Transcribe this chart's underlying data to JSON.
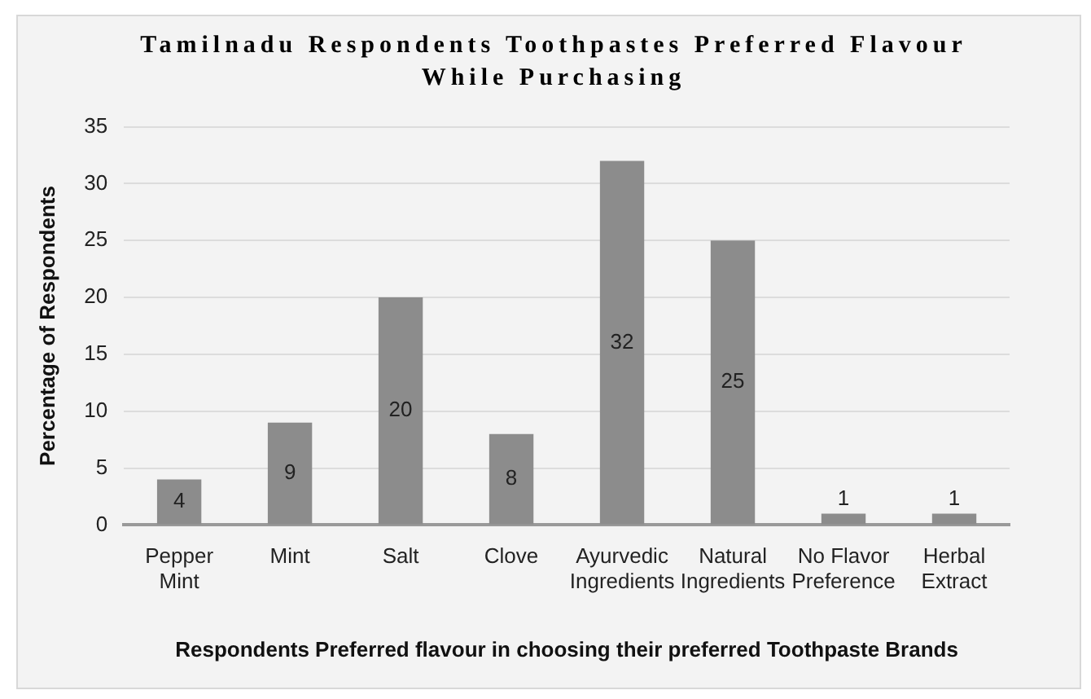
{
  "chart_data": {
    "type": "bar",
    "title": "Tamilnadu Respondents Toothpastes Preferred Flavour While Purchasing",
    "xlabel": "Respondents Preferred flavour in choosing their preferred Toothpaste Brands",
    "ylabel": "Percentage of Respondents",
    "categories": [
      "Pepper Mint",
      "Mint",
      "Salt",
      "Clove",
      "Ayurvedic Ingredients",
      "Natural Ingredients",
      "No Flavor Preference",
      "Herbal Extract"
    ],
    "values": [
      4,
      9,
      20,
      8,
      32,
      25,
      1,
      1
    ],
    "color": "#8c8c8c",
    "ylim": [
      0,
      35
    ],
    "yticks": [
      0,
      5,
      10,
      15,
      20,
      25,
      30,
      35
    ],
    "grid": "y",
    "data_labels": true,
    "legend": false
  }
}
